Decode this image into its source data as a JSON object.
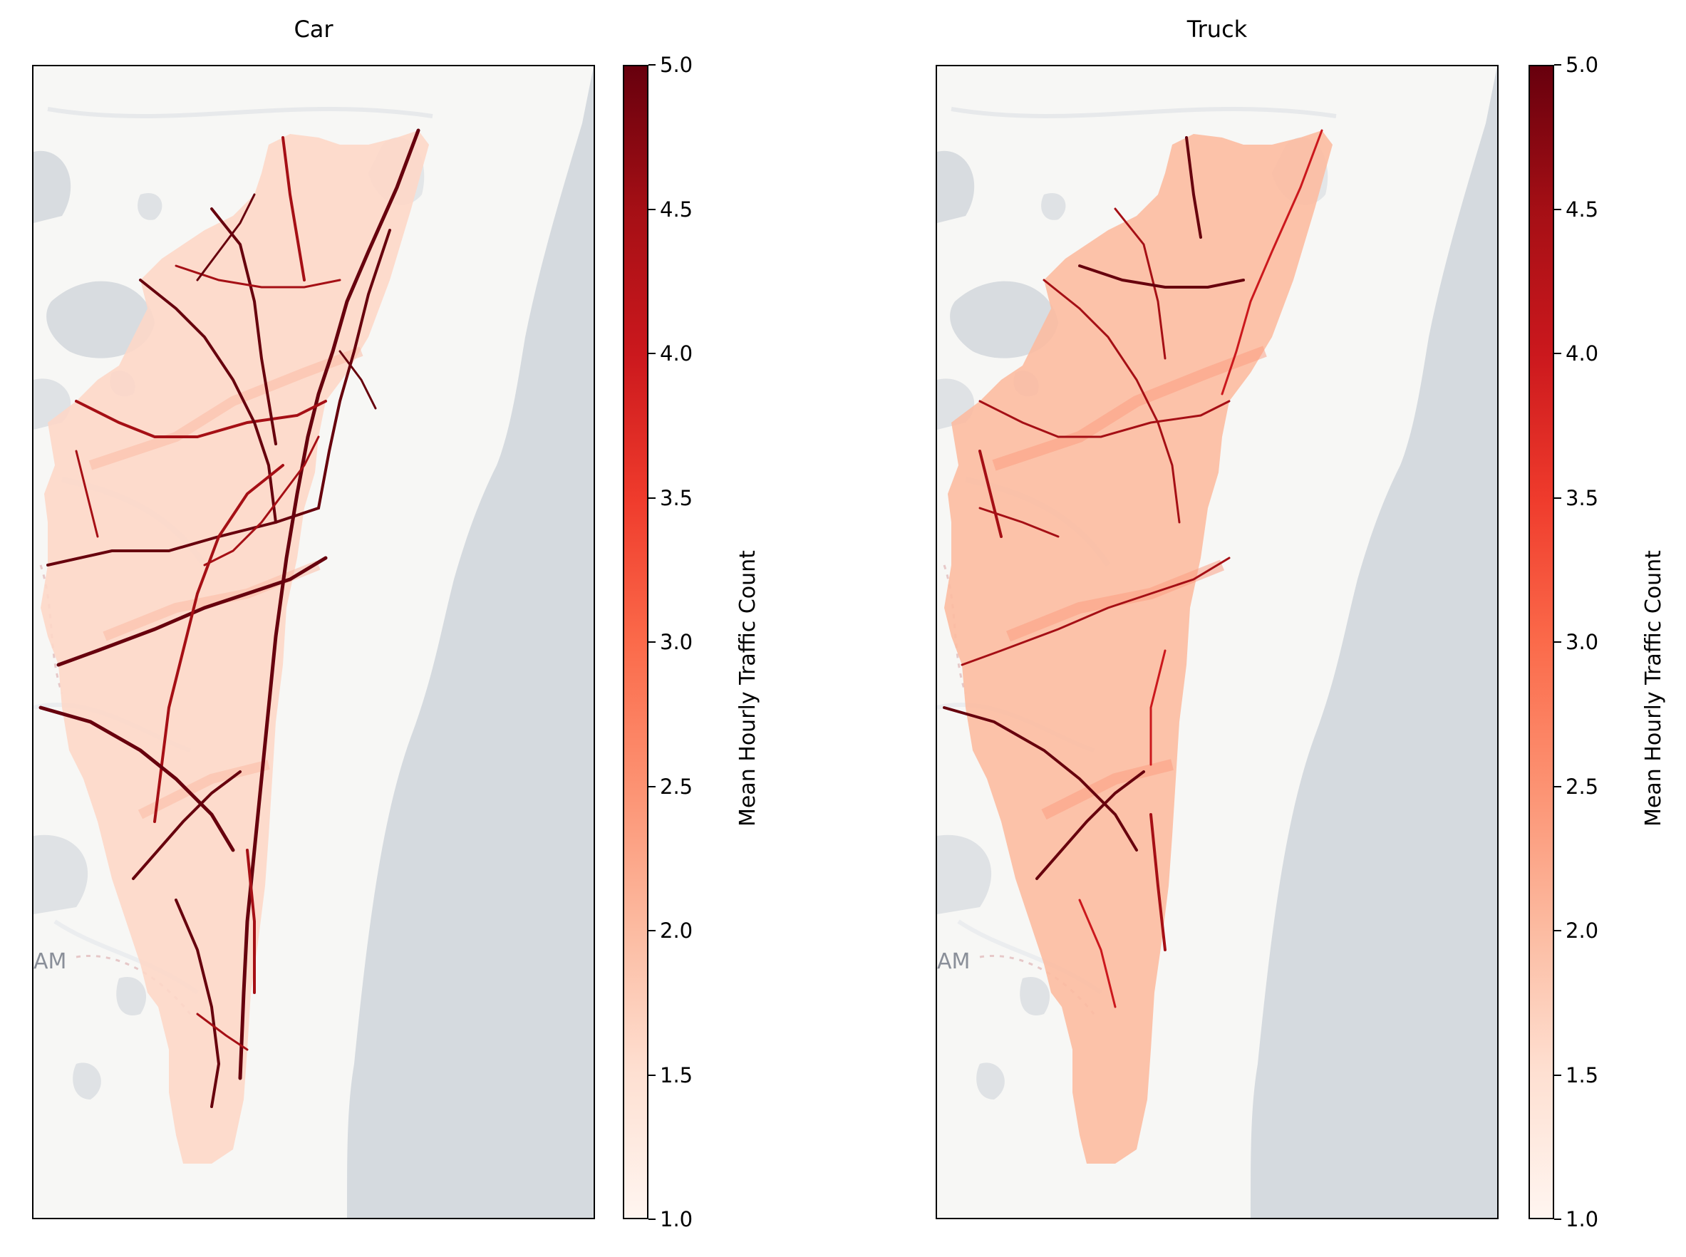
{
  "figure": {
    "panels": [
      {
        "title": "Car",
        "colorbar_label": "Mean Hourly Traffic Count",
        "map_label": "AM"
      },
      {
        "title": "Truck",
        "colorbar_label": "Mean Hourly Traffic Count",
        "map_label": "AM"
      }
    ],
    "colorbar_ticks": [
      "1.0",
      "1.5",
      "2.0",
      "2.5",
      "3.0",
      "3.5",
      "4.0",
      "4.5",
      "5.0"
    ],
    "colorbar_range": [
      1.0,
      5.0
    ],
    "colormap": "Reds",
    "colors": {
      "basemap": "#f7f7f5",
      "water": "#d5dadf",
      "low": "#fff5f0",
      "high": "#67000d"
    }
  },
  "chart_data": [
    {
      "type": "heatmap",
      "title": "Car",
      "colorbar_label": "Mean Hourly Traffic Count",
      "colorbar_range": [
        1.0,
        5.0
      ],
      "colorbar_ticks": [
        1.0,
        1.5,
        2.0,
        2.5,
        3.0,
        3.5,
        4.0,
        4.5,
        5.0
      ],
      "colormap": "Reds"
    },
    {
      "type": "heatmap",
      "title": "Truck",
      "colorbar_label": "Mean Hourly Traffic Count",
      "colorbar_range": [
        1.0,
        5.0
      ],
      "colorbar_ticks": [
        1.0,
        1.5,
        2.0,
        2.5,
        3.0,
        3.5,
        4.0,
        4.5,
        5.0
      ],
      "colormap": "Reds"
    }
  ]
}
